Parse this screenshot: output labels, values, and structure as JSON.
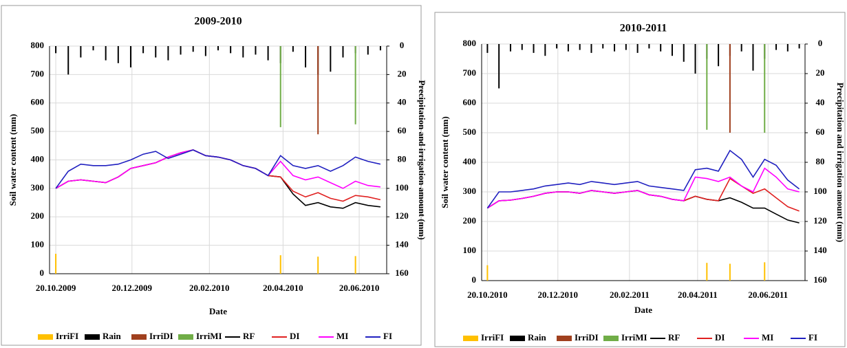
{
  "chart_data": [
    {
      "type": "line",
      "title": "2009-2010",
      "x_label": "Date",
      "y_label": "Soil water content (mm)",
      "y2_label": "Precipitation and irrigation amount  (mm)",
      "x": [
        "2009-10-20",
        "2009-10-30",
        "2009-11-09",
        "2009-11-19",
        "2009-11-29",
        "2009-12-09",
        "2009-12-19",
        "2009-12-29",
        "2010-01-08",
        "2010-01-18",
        "2010-01-28",
        "2010-02-07",
        "2010-02-17",
        "2010-02-27",
        "2010-03-09",
        "2010-03-19",
        "2010-03-29",
        "2010-04-08",
        "2010-04-18",
        "2010-04-28",
        "2010-05-08",
        "2010-05-18",
        "2010-05-28",
        "2010-06-07",
        "2010-06-17",
        "2010-06-27",
        "2010-07-07"
      ],
      "xlim": [
        "2009-10-15",
        "2010-07-12"
      ],
      "xticks": [
        {
          "value": "2009-10-20",
          "label": "20.10.2009"
        },
        {
          "value": "2009-12-20",
          "label": "20.12.2009"
        },
        {
          "value": "2010-02-20",
          "label": "20.02.2010"
        },
        {
          "value": "2010-04-20",
          "label": "20.04.2010"
        },
        {
          "value": "2010-06-20",
          "label": "20.06.2010"
        }
      ],
      "ylim": [
        0,
        800
      ],
      "yticks": [
        0,
        100,
        200,
        300,
        400,
        500,
        600,
        700,
        800
      ],
      "y2lim": [
        0,
        160
      ],
      "y2ticks": [
        0,
        20,
        40,
        60,
        80,
        100,
        120,
        140,
        160
      ],
      "y2_inverted": true,
      "grid": true,
      "series": [
        {
          "name": "IrriFI",
          "kind": "bar",
          "color": "#ffc000",
          "values": [
            70,
            null,
            null,
            null,
            null,
            null,
            null,
            null,
            null,
            null,
            null,
            null,
            null,
            null,
            null,
            null,
            null,
            null,
            65,
            null,
            null,
            60,
            null,
            null,
            62,
            null,
            null
          ]
        },
        {
          "name": "Rain",
          "kind": "bar",
          "axis": "y2",
          "color": "#000000",
          "values": [
            5,
            20,
            8,
            3,
            10,
            12,
            15,
            5,
            8,
            10,
            6,
            4,
            7,
            3,
            5,
            8,
            6,
            10,
            12,
            4,
            15,
            20,
            18,
            8,
            5,
            6,
            3
          ]
        },
        {
          "name": "IrriDI",
          "kind": "bar",
          "axis": "y2",
          "color": "#a0401e",
          "values": [
            null,
            null,
            null,
            null,
            null,
            null,
            null,
            null,
            null,
            null,
            null,
            null,
            null,
            null,
            null,
            null,
            null,
            null,
            null,
            null,
            null,
            62,
            null,
            null,
            null,
            null,
            null
          ]
        },
        {
          "name": "IrriMI",
          "kind": "bar",
          "axis": "y2",
          "color": "#70ad47",
          "values": [
            null,
            null,
            null,
            null,
            null,
            null,
            null,
            null,
            null,
            null,
            null,
            null,
            null,
            null,
            null,
            null,
            null,
            null,
            57,
            null,
            null,
            null,
            null,
            null,
            55,
            null,
            null
          ]
        },
        {
          "name": "RF",
          "kind": "line",
          "color": "#000000",
          "values": [
            300,
            325,
            330,
            325,
            320,
            340,
            370,
            380,
            390,
            410,
            425,
            435,
            415,
            410,
            400,
            380,
            370,
            345,
            340,
            280,
            240,
            250,
            235,
            230,
            250,
            240,
            235
          ]
        },
        {
          "name": "DI",
          "kind": "line",
          "color": "#e02020",
          "values": [
            300,
            325,
            330,
            325,
            320,
            340,
            370,
            380,
            390,
            410,
            425,
            435,
            415,
            410,
            400,
            380,
            370,
            345,
            340,
            290,
            270,
            285,
            265,
            255,
            275,
            270,
            260
          ]
        },
        {
          "name": "MI",
          "kind": "line",
          "color": "#ff00ff",
          "values": [
            300,
            325,
            330,
            325,
            320,
            340,
            370,
            380,
            390,
            410,
            425,
            435,
            415,
            410,
            400,
            380,
            370,
            345,
            395,
            345,
            330,
            340,
            320,
            300,
            325,
            310,
            305
          ]
        },
        {
          "name": "FI",
          "kind": "line",
          "color": "#2020c0",
          "values": [
            300,
            360,
            385,
            380,
            380,
            385,
            400,
            420,
            430,
            405,
            420,
            435,
            415,
            410,
            400,
            380,
            370,
            345,
            415,
            380,
            370,
            380,
            360,
            380,
            410,
            395,
            385
          ]
        }
      ]
    },
    {
      "type": "line",
      "title": "2010-2011",
      "x_label": "Date",
      "y_label": "Soil water content (mm)",
      "y2_label": "Precipitation and irrigation amount  (mm)",
      "x": [
        "2010-10-20",
        "2010-10-30",
        "2010-11-09",
        "2010-11-19",
        "2010-11-29",
        "2010-12-09",
        "2010-12-19",
        "2010-12-29",
        "2011-01-08",
        "2011-01-18",
        "2011-01-28",
        "2011-02-07",
        "2011-02-17",
        "2011-02-27",
        "2011-03-09",
        "2011-03-19",
        "2011-03-29",
        "2011-04-08",
        "2011-04-18",
        "2011-04-28",
        "2011-05-08",
        "2011-05-18",
        "2011-05-28",
        "2011-06-07",
        "2011-06-17",
        "2011-06-27",
        "2011-07-07",
        "2011-07-17"
      ],
      "xlim": [
        "2010-10-15",
        "2011-07-22"
      ],
      "xticks": [
        {
          "value": "2010-10-20",
          "label": "20.10.2010"
        },
        {
          "value": "2010-12-20",
          "label": "20.12.2010"
        },
        {
          "value": "2011-02-20",
          "label": "20.02.2011"
        },
        {
          "value": "2011-04-20",
          "label": "20.04.2011"
        },
        {
          "value": "2011-06-20",
          "label": "20.06.2011"
        }
      ],
      "ylim": [
        0,
        800
      ],
      "yticks": [
        0,
        100,
        200,
        300,
        400,
        500,
        600,
        700,
        800
      ],
      "y2lim": [
        0,
        160
      ],
      "y2ticks": [
        0,
        20,
        40,
        60,
        80,
        100,
        120,
        140,
        160
      ],
      "y2_inverted": true,
      "grid": true,
      "series": [
        {
          "name": "IrriFI",
          "kind": "bar",
          "color": "#ffc000",
          "values": [
            52,
            null,
            null,
            null,
            null,
            null,
            null,
            null,
            null,
            null,
            null,
            null,
            null,
            null,
            null,
            null,
            null,
            null,
            null,
            60,
            null,
            57,
            null,
            null,
            62,
            null,
            null,
            null
          ]
        },
        {
          "name": "Rain",
          "kind": "bar",
          "axis": "y2",
          "color": "#000000",
          "values": [
            6,
            30,
            5,
            4,
            6,
            8,
            3,
            5,
            4,
            6,
            3,
            5,
            4,
            6,
            3,
            5,
            8,
            12,
            20,
            10,
            15,
            8,
            5,
            18,
            10,
            4,
            5,
            3
          ]
        },
        {
          "name": "IrriDI",
          "kind": "bar",
          "axis": "y2",
          "color": "#a0401e",
          "values": [
            null,
            null,
            null,
            null,
            null,
            null,
            null,
            null,
            null,
            null,
            null,
            null,
            null,
            null,
            null,
            null,
            null,
            null,
            null,
            null,
            null,
            60,
            null,
            null,
            null,
            null,
            null,
            null
          ]
        },
        {
          "name": "IrriMI",
          "kind": "bar",
          "axis": "y2",
          "color": "#70ad47",
          "values": [
            null,
            null,
            null,
            null,
            null,
            null,
            null,
            null,
            null,
            null,
            null,
            null,
            null,
            null,
            null,
            null,
            null,
            null,
            null,
            58,
            null,
            null,
            null,
            null,
            60,
            null,
            null,
            null
          ]
        },
        {
          "name": "RF",
          "kind": "line",
          "color": "#000000",
          "values": [
            245,
            270,
            272,
            278,
            285,
            295,
            300,
            300,
            295,
            305,
            300,
            295,
            300,
            305,
            290,
            285,
            275,
            270,
            285,
            275,
            270,
            280,
            265,
            245,
            245,
            225,
            205,
            195
          ]
        },
        {
          "name": "DI",
          "kind": "line",
          "color": "#e02020",
          "values": [
            245,
            270,
            272,
            278,
            285,
            295,
            300,
            300,
            295,
            305,
            300,
            295,
            300,
            305,
            290,
            285,
            275,
            270,
            285,
            275,
            270,
            345,
            320,
            295,
            310,
            280,
            250,
            235
          ]
        },
        {
          "name": "MI",
          "kind": "line",
          "color": "#ff00ff",
          "values": [
            245,
            270,
            272,
            278,
            285,
            295,
            300,
            300,
            295,
            305,
            300,
            295,
            300,
            305,
            290,
            285,
            275,
            270,
            350,
            345,
            335,
            350,
            320,
            300,
            380,
            350,
            310,
            300
          ]
        },
        {
          "name": "FI",
          "kind": "line",
          "color": "#2020c0",
          "values": [
            245,
            300,
            300,
            305,
            310,
            320,
            325,
            330,
            325,
            335,
            330,
            325,
            330,
            335,
            320,
            315,
            310,
            305,
            375,
            380,
            370,
            440,
            410,
            350,
            410,
            390,
            340,
            310
          ]
        }
      ]
    }
  ]
}
